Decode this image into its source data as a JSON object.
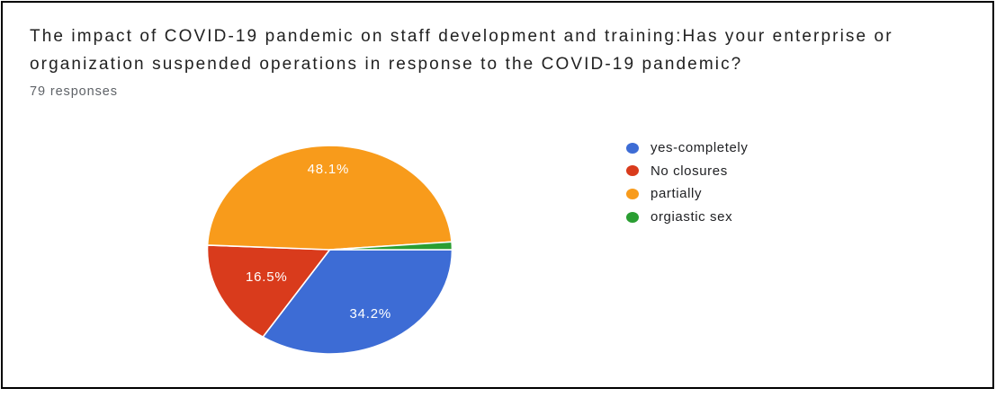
{
  "header": {
    "title": "The impact of COVID-19 pandemic on staff development and training:Has your enterprise or organization suspended operations in response to the COVID-19 pandemic?",
    "responses": "79 responses"
  },
  "frame": {
    "border_color": "#000000",
    "background": "#ffffff"
  },
  "chart_data": {
    "type": "pie",
    "title": "The impact of COVID-19 pandemic on staff development and training:Has your enterprise or organization suspended operations in response to the COVID-19 pandemic?",
    "subtitle": "79 responses",
    "categories": [
      "yes-completely",
      "No closures",
      "partially",
      "orgiastic sex"
    ],
    "values": [
      34.2,
      16.5,
      48.1,
      1.2
    ],
    "unit": "%",
    "slice_labels": [
      "34.2%",
      "16.5%",
      "48.1%",
      ""
    ],
    "colors": [
      "#3d6cd5",
      "#d93b1c",
      "#f89b1b",
      "#2a9e32"
    ],
    "legend_position": "right",
    "start_angle_deg": 90,
    "direction": "clockwise",
    "label_radius": [
      0.7,
      0.58,
      0.77,
      0
    ],
    "slice_label_color": "#ffffff",
    "stroke_color": "#ffffff",
    "text_color": "#212121",
    "subtitle_color": "#5f6368"
  }
}
